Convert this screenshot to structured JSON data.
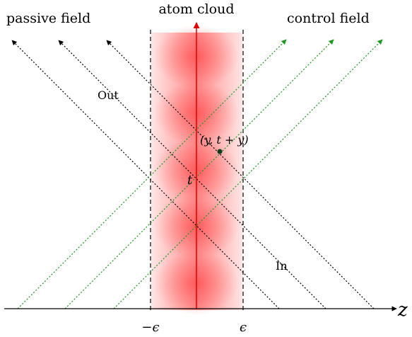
{
  "labels": {
    "passive_field": "passive field",
    "atom_cloud": "atom cloud",
    "control_field": "control field",
    "out": "Out",
    "in": "In",
    "point": "(y, t + y)",
    "t": "t",
    "z": "z",
    "neg_epsilon": "−ϵ",
    "epsilon": "ϵ"
  },
  "colors": {
    "passive_lines": "#000000",
    "control_lines": "#1a9a1a",
    "cloud": "#ff2a2a",
    "time_axis": "#e00000",
    "boundary": "#000000",
    "point": "#0c3a1a"
  }
}
